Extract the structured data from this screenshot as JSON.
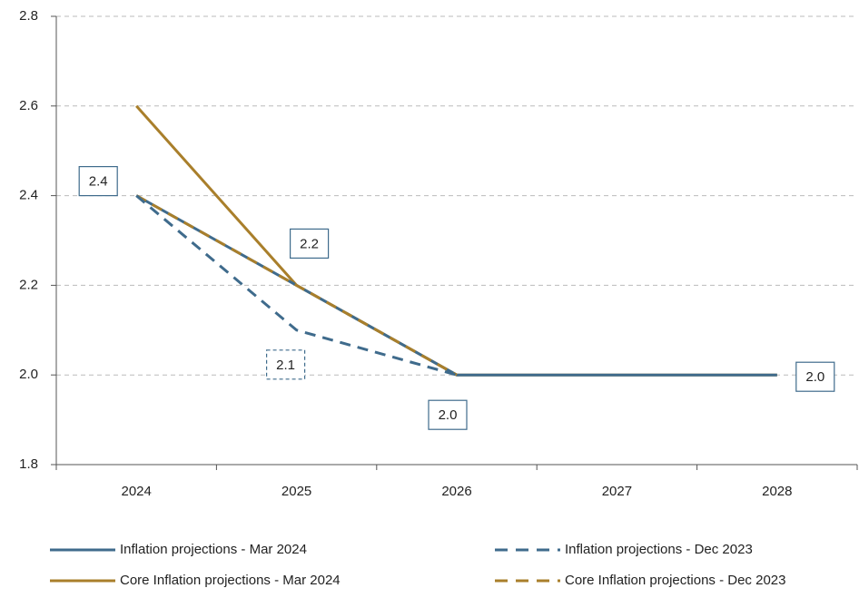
{
  "chart_data": {
    "type": "line",
    "categories": [
      "2024",
      "2025",
      "2026",
      "2027",
      "2028"
    ],
    "series": [
      {
        "name": "Inflation projections - Mar 2024",
        "color": "#3f6b8c",
        "dash": false,
        "values": [
          2.4,
          2.2,
          2.0,
          2.0,
          2.0
        ],
        "value_labels": [
          "2.4",
          "2.2",
          "2.0",
          null,
          "2.0"
        ]
      },
      {
        "name": "Inflation projections - Dec 2023",
        "color": "#3f6b8c",
        "dash": true,
        "values": [
          2.4,
          2.1,
          2.0,
          null,
          null
        ],
        "value_labels": [
          null,
          "2.1",
          null,
          null,
          null
        ]
      },
      {
        "name": "Core Inflation projections - Mar 2024",
        "color": "#a97f2b",
        "dash": false,
        "values": [
          2.6,
          2.2,
          2.0,
          2.0,
          2.0
        ]
      },
      {
        "name": "Core Inflation projections - Dec 2023",
        "color": "#a97f2b",
        "dash": true,
        "values": [
          2.4,
          2.2,
          2.0,
          null,
          null
        ]
      }
    ],
    "ylim": [
      1.8,
      2.8
    ],
    "yticks": [
      1.8,
      {
        "value": 2,
        "label": "2.0"
      },
      2.2,
      2.4,
      2.6,
      2.8
    ],
    "grid": true
  }
}
